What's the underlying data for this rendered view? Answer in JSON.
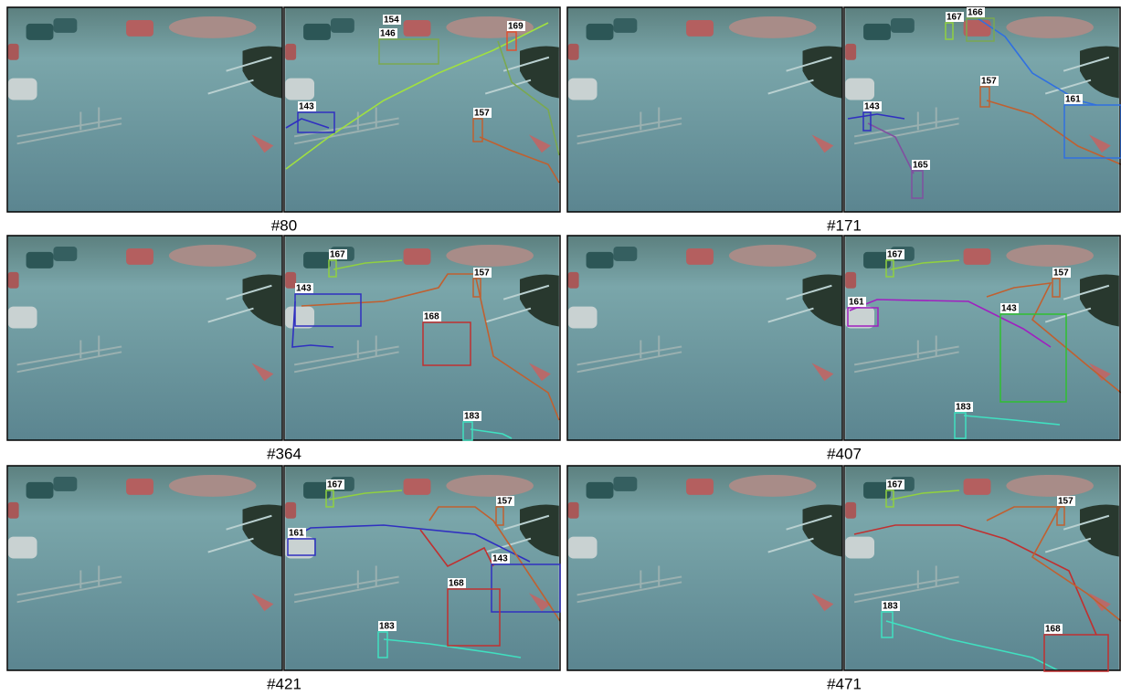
{
  "panels": [
    {
      "frame": "#80",
      "tracks": [
        "154",
        "146",
        "169",
        "143",
        "157"
      ]
    },
    {
      "frame": "#171",
      "tracks": [
        "167",
        "166",
        "157",
        "161",
        "143",
        "165"
      ]
    },
    {
      "frame": "#364",
      "tracks": [
        "167",
        "157",
        "143",
        "168",
        "183"
      ]
    },
    {
      "frame": "#407",
      "tracks": [
        "167",
        "157",
        "161",
        "143",
        "183"
      ]
    },
    {
      "frame": "#421",
      "tracks": [
        "167",
        "157",
        "161",
        "143",
        "168",
        "183"
      ]
    },
    {
      "frame": "#471",
      "tracks": [
        "167",
        "157",
        "183",
        "168"
      ]
    }
  ]
}
